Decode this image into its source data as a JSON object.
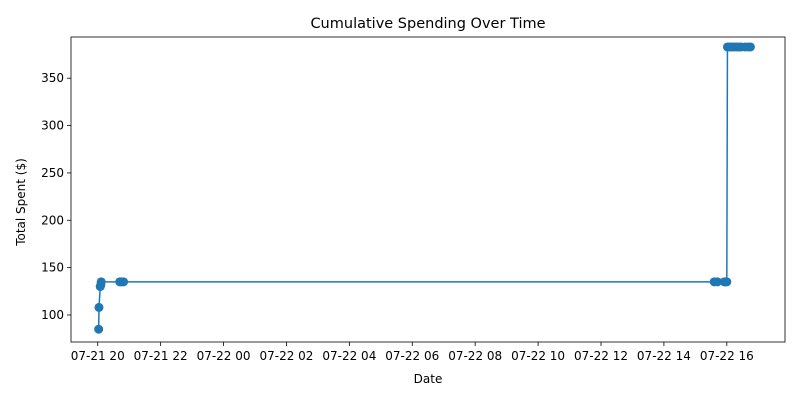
{
  "chart_data": {
    "type": "line",
    "title": "Cumulative Spending Over Time",
    "xlabel": "Date",
    "ylabel": "Total Spent ($)",
    "grid": false,
    "legend": "none",
    "x_domain_hours": [
      18.15,
      40.85
    ],
    "ylim": [
      71.5,
      393.5
    ],
    "x_ticks": [
      {
        "hours": 19,
        "label": "07-21 20"
      },
      {
        "hours": 21,
        "label": "07-21 22"
      },
      {
        "hours": 23,
        "label": "07-22 00"
      },
      {
        "hours": 25,
        "label": "07-22 02"
      },
      {
        "hours": 27,
        "label": "07-22 04"
      },
      {
        "hours": 29,
        "label": "07-22 06"
      },
      {
        "hours": 31,
        "label": "07-22 08"
      },
      {
        "hours": 33,
        "label": "07-22 10"
      },
      {
        "hours": 35,
        "label": "07-22 12"
      },
      {
        "hours": 37,
        "label": "07-22 14"
      },
      {
        "hours": 39,
        "label": "07-22 16"
      }
    ],
    "y_ticks": [
      100,
      150,
      200,
      250,
      300,
      350
    ],
    "series": [
      {
        "color": "#1f77b4",
        "points": [
          {
            "x": 19.03,
            "y": 85
          },
          {
            "x": 19.04,
            "y": 108
          },
          {
            "x": 19.08,
            "y": 130
          },
          {
            "x": 19.1,
            "y": 132
          },
          {
            "x": 19.11,
            "y": 135
          },
          {
            "x": 19.7,
            "y": 135
          },
          {
            "x": 19.75,
            "y": 135
          },
          {
            "x": 19.82,
            "y": 135
          },
          {
            "x": 38.6,
            "y": 135
          },
          {
            "x": 38.7,
            "y": 135
          },
          {
            "x": 38.92,
            "y": 135
          },
          {
            "x": 38.96,
            "y": 135
          },
          {
            "x": 39.0,
            "y": 135
          },
          {
            "x": 39.02,
            "y": 383
          },
          {
            "x": 39.08,
            "y": 383
          },
          {
            "x": 39.15,
            "y": 383
          },
          {
            "x": 39.22,
            "y": 383
          },
          {
            "x": 39.3,
            "y": 383
          },
          {
            "x": 39.38,
            "y": 383
          },
          {
            "x": 39.45,
            "y": 383
          },
          {
            "x": 39.58,
            "y": 383
          },
          {
            "x": 39.68,
            "y": 383
          },
          {
            "x": 39.75,
            "y": 383
          }
        ]
      }
    ]
  }
}
